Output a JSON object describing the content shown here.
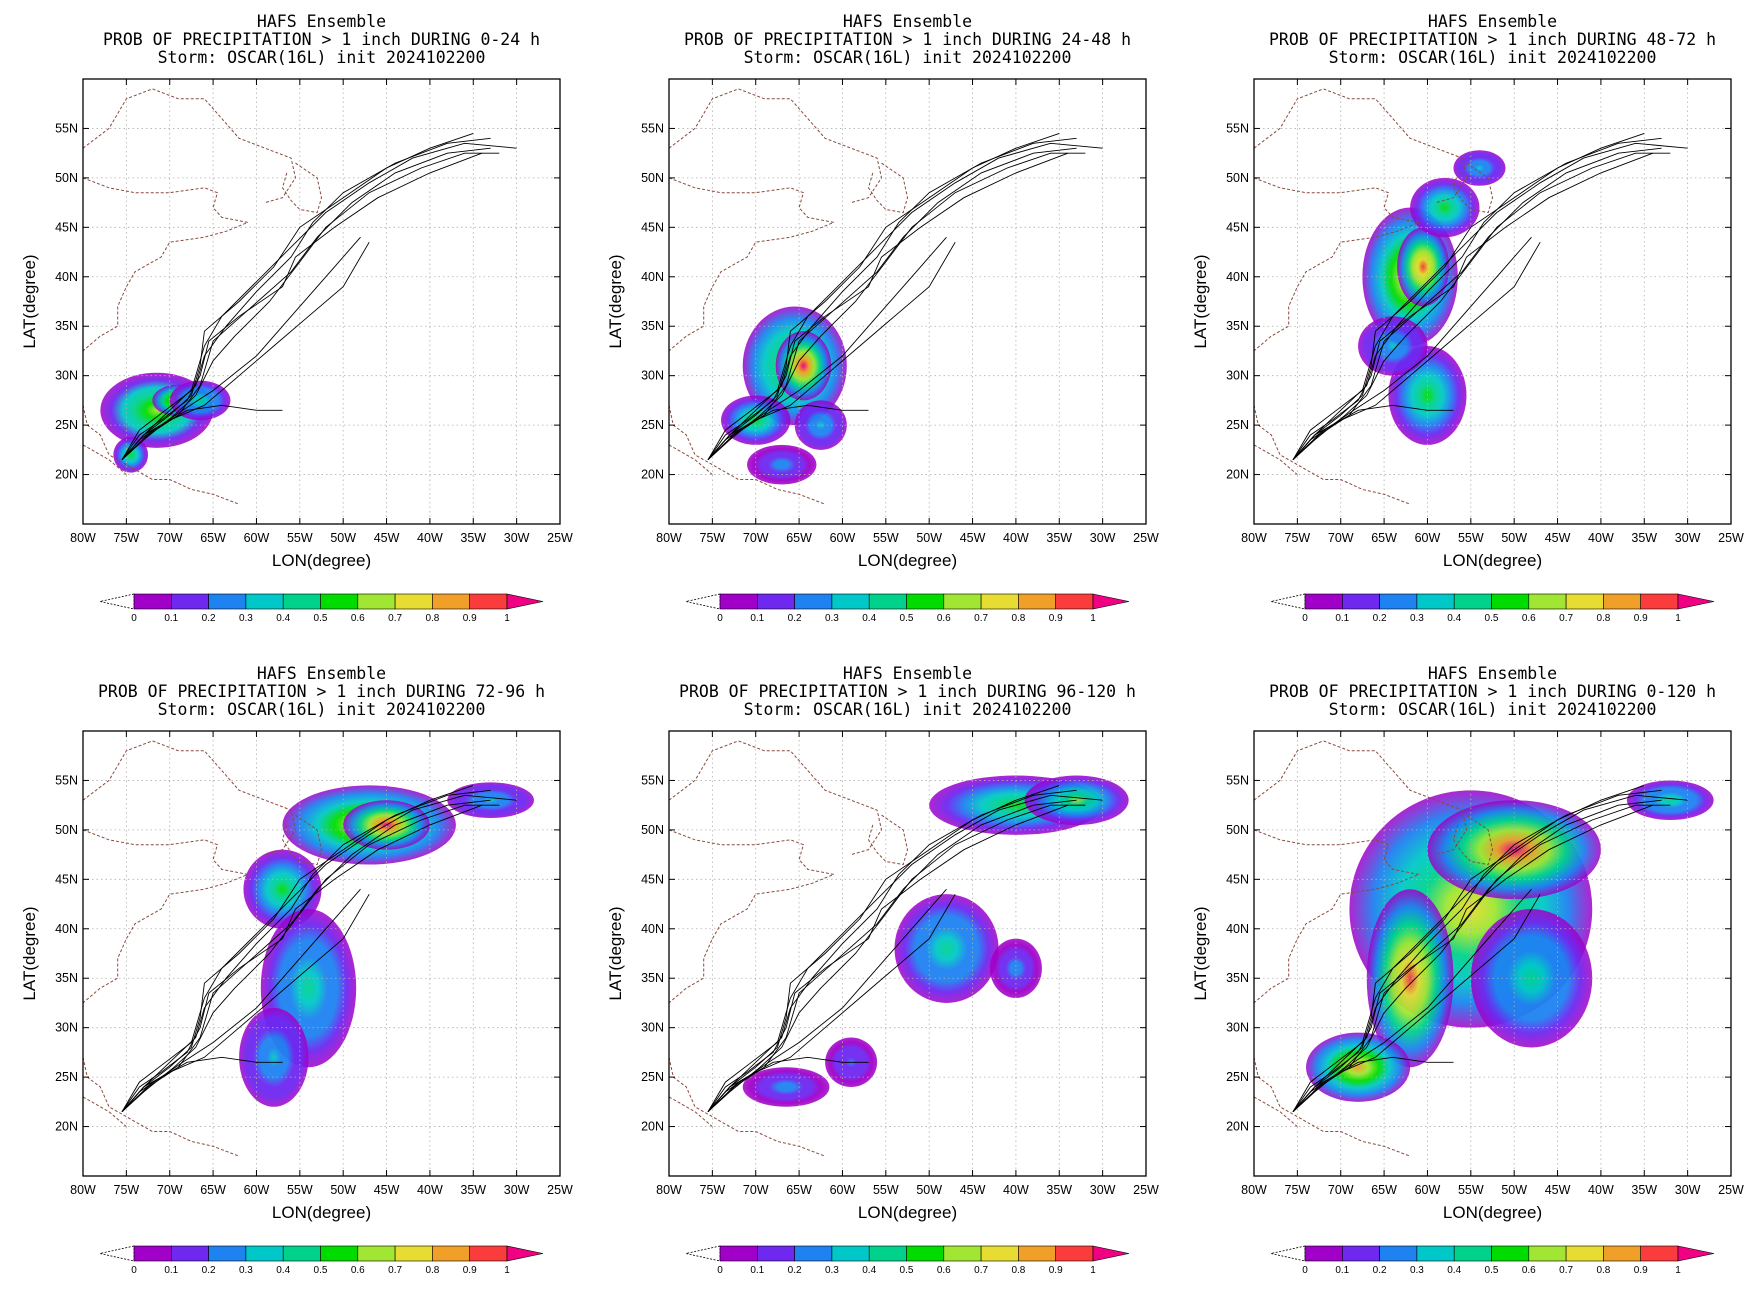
{
  "chart_data": [
    {
      "type": "heatmap",
      "model": "HAFS Ensemble",
      "title": "PROB OF PRECIPITATION > 1 inch DURING  0-24 h",
      "storm": "Storm: OSCAR(16L) init 2024102200",
      "xlabel": "LON(degree)",
      "ylabel": "LAT(degree)",
      "xlim": [
        -80,
        -25
      ],
      "ylim": [
        15,
        60
      ],
      "xticks": [
        "80W",
        "75W",
        "70W",
        "65W",
        "60W",
        "55W",
        "50W",
        "45W",
        "40W",
        "35W",
        "30W",
        "25W"
      ],
      "yticks": [
        "20N",
        "25N",
        "30N",
        "35N",
        "40N",
        "45N",
        "50N",
        "55N"
      ],
      "grid": true,
      "colorbar": {
        "ticks": [
          "0",
          "0.1",
          "0.2",
          "0.3",
          "0.4",
          "0.5",
          "0.6",
          "0.7",
          "0.8",
          "0.9",
          "1"
        ]
      },
      "precip_blobs": [
        {
          "lon": -71.5,
          "lat": 26.5,
          "rx": 6.5,
          "ry": 3.8,
          "peak": 0.6
        },
        {
          "lon": -69.0,
          "lat": 27.5,
          "rx": 3.0,
          "ry": 1.6,
          "peak": 0.85
        },
        {
          "lon": -74.5,
          "lat": 22.0,
          "rx": 2.0,
          "ry": 1.8,
          "peak": 0.45
        },
        {
          "lon": -66.5,
          "lat": 27.5,
          "rx": 3.5,
          "ry": 2.0,
          "peak": 0.35
        }
      ]
    },
    {
      "type": "heatmap",
      "model": "HAFS Ensemble",
      "title": "PROB OF PRECIPITATION > 1 inch DURING 24-48 h",
      "storm": "Storm: OSCAR(16L) init 2024102200",
      "xlabel": "LON(degree)",
      "ylabel": "LAT(degree)",
      "xlim": [
        -80,
        -25
      ],
      "ylim": [
        15,
        60
      ],
      "xticks": [
        "80W",
        "75W",
        "70W",
        "65W",
        "60W",
        "55W",
        "50W",
        "45W",
        "40W",
        "35W",
        "30W",
        "25W"
      ],
      "yticks": [
        "20N",
        "25N",
        "30N",
        "35N",
        "40N",
        "45N",
        "50N",
        "55N"
      ],
      "grid": true,
      "colorbar": {
        "ticks": [
          "0",
          "0.1",
          "0.2",
          "0.3",
          "0.4",
          "0.5",
          "0.6",
          "0.7",
          "0.8",
          "0.9",
          "1"
        ]
      },
      "precip_blobs": [
        {
          "lon": -65.5,
          "lat": 31.0,
          "rx": 6.0,
          "ry": 6.0,
          "peak": 0.7
        },
        {
          "lon": -64.5,
          "lat": 31.0,
          "rx": 3.2,
          "ry": 3.5,
          "peak": 0.95
        },
        {
          "lon": -70.0,
          "lat": 25.5,
          "rx": 4.0,
          "ry": 2.5,
          "peak": 0.45
        },
        {
          "lon": -62.5,
          "lat": 25.0,
          "rx": 3.0,
          "ry": 2.5,
          "peak": 0.3
        },
        {
          "lon": -67.0,
          "lat": 21.0,
          "rx": 4.0,
          "ry": 2.0,
          "peak": 0.2
        }
      ]
    },
    {
      "type": "heatmap",
      "model": "HAFS Ensemble",
      "title": "PROB OF PRECIPITATION > 1 inch DURING 48-72 h",
      "storm": "Storm: OSCAR(16L) init 2024102200",
      "xlabel": "LON(degree)",
      "ylabel": "LAT(degree)",
      "xlim": [
        -80,
        -25
      ],
      "ylim": [
        15,
        60
      ],
      "xticks": [
        "80W",
        "75W",
        "70W",
        "65W",
        "60W",
        "55W",
        "50W",
        "45W",
        "40W",
        "35W",
        "30W",
        "25W"
      ],
      "yticks": [
        "20N",
        "25N",
        "30N",
        "35N",
        "40N",
        "45N",
        "50N",
        "55N"
      ],
      "grid": true,
      "colorbar": {
        "ticks": [
          "0",
          "0.1",
          "0.2",
          "0.3",
          "0.4",
          "0.5",
          "0.6",
          "0.7",
          "0.8",
          "0.9",
          "1"
        ]
      },
      "precip_blobs": [
        {
          "lon": -62.0,
          "lat": 40.0,
          "rx": 5.5,
          "ry": 7.0,
          "peak": 0.75
        },
        {
          "lon": -60.5,
          "lat": 41.0,
          "rx": 3.0,
          "ry": 4.0,
          "peak": 0.9
        },
        {
          "lon": -58.0,
          "lat": 47.0,
          "rx": 4.0,
          "ry": 3.0,
          "peak": 0.5
        },
        {
          "lon": -60.0,
          "lat": 28.0,
          "rx": 4.5,
          "ry": 5.0,
          "peak": 0.45
        },
        {
          "lon": -54.0,
          "lat": 51.0,
          "rx": 3.0,
          "ry": 1.8,
          "peak": 0.25
        },
        {
          "lon": -64.0,
          "lat": 33.0,
          "rx": 4.0,
          "ry": 3.0,
          "peak": 0.3
        }
      ]
    },
    {
      "type": "heatmap",
      "model": "HAFS Ensemble",
      "title": "PROB OF PRECIPITATION > 1 inch DURING 72-96 h",
      "storm": "Storm: OSCAR(16L) init 2024102200",
      "xlabel": "LON(degree)",
      "ylabel": "LAT(degree)",
      "xlim": [
        -80,
        -25
      ],
      "ylim": [
        15,
        60
      ],
      "xticks": [
        "80W",
        "75W",
        "70W",
        "65W",
        "60W",
        "55W",
        "50W",
        "45W",
        "40W",
        "35W",
        "30W",
        "25W"
      ],
      "yticks": [
        "20N",
        "25N",
        "30N",
        "35N",
        "40N",
        "45N",
        "50N",
        "55N"
      ],
      "grid": true,
      "colorbar": {
        "ticks": [
          "0",
          "0.1",
          "0.2",
          "0.3",
          "0.4",
          "0.5",
          "0.6",
          "0.7",
          "0.8",
          "0.9",
          "1"
        ]
      },
      "precip_blobs": [
        {
          "lon": -47.0,
          "lat": 50.5,
          "rx": 10.0,
          "ry": 4.0,
          "peak": 0.75
        },
        {
          "lon": -45.0,
          "lat": 50.5,
          "rx": 5.0,
          "ry": 2.5,
          "peak": 0.95
        },
        {
          "lon": -57.0,
          "lat": 44.0,
          "rx": 4.5,
          "ry": 4.0,
          "peak": 0.5
        },
        {
          "lon": -33.0,
          "lat": 53.0,
          "rx": 5.0,
          "ry": 1.8,
          "peak": 0.3
        },
        {
          "lon": -54.0,
          "lat": 34.0,
          "rx": 5.5,
          "ry": 8.0,
          "peak": 0.35
        },
        {
          "lon": -58.0,
          "lat": 27.0,
          "rx": 4.0,
          "ry": 5.0,
          "peak": 0.25
        }
      ]
    },
    {
      "type": "heatmap",
      "model": "HAFS Ensemble",
      "title": "PROB OF PRECIPITATION > 1 inch DURING 96-120 h",
      "storm": "Storm: OSCAR(16L) init 2024102200",
      "xlabel": "LON(degree)",
      "ylabel": "LAT(degree)",
      "xlim": [
        -80,
        -25
      ],
      "ylim": [
        15,
        60
      ],
      "xticks": [
        "80W",
        "75W",
        "70W",
        "65W",
        "60W",
        "55W",
        "50W",
        "45W",
        "40W",
        "35W",
        "30W",
        "25W"
      ],
      "yticks": [
        "20N",
        "25N",
        "30N",
        "35N",
        "40N",
        "45N",
        "50N",
        "55N"
      ],
      "grid": true,
      "colorbar": {
        "ticks": [
          "0",
          "0.1",
          "0.2",
          "0.3",
          "0.4",
          "0.5",
          "0.6",
          "0.7",
          "0.8",
          "0.9",
          "1"
        ]
      },
      "precip_blobs": [
        {
          "lon": -40.0,
          "lat": 52.5,
          "rx": 10.0,
          "ry": 3.0,
          "peak": 0.5
        },
        {
          "lon": -33.0,
          "lat": 53.0,
          "rx": 6.0,
          "ry": 2.5,
          "peak": 0.55
        },
        {
          "lon": -48.0,
          "lat": 38.0,
          "rx": 6.0,
          "ry": 5.5,
          "peak": 0.35
        },
        {
          "lon": -40.0,
          "lat": 36.0,
          "rx": 3.0,
          "ry": 3.0,
          "peak": 0.2
        },
        {
          "lon": -66.5,
          "lat": 24.0,
          "rx": 5.0,
          "ry": 2.0,
          "peak": 0.2
        },
        {
          "lon": -59.0,
          "lat": 26.5,
          "rx": 3.0,
          "ry": 2.5,
          "peak": 0.15
        }
      ]
    },
    {
      "type": "heatmap",
      "model": "HAFS Ensemble",
      "title": "PROB OF PRECIPITATION > 1 inch DURING 0-120 h",
      "storm": "Storm: OSCAR(16L) init 2024102200",
      "xlabel": "LON(degree)",
      "ylabel": "LAT(degree)",
      "xlim": [
        -80,
        -25
      ],
      "ylim": [
        15,
        60
      ],
      "xticks": [
        "80W",
        "75W",
        "70W",
        "65W",
        "60W",
        "55W",
        "50W",
        "45W",
        "40W",
        "35W",
        "30W",
        "25W"
      ],
      "yticks": [
        "20N",
        "25N",
        "30N",
        "35N",
        "40N",
        "45N",
        "50N",
        "55N"
      ],
      "grid": true,
      "colorbar": {
        "ticks": [
          "0",
          "0.1",
          "0.2",
          "0.3",
          "0.4",
          "0.5",
          "0.6",
          "0.7",
          "0.8",
          "0.9",
          "1"
        ]
      },
      "precip_blobs": [
        {
          "lon": -55.0,
          "lat": 42.0,
          "rx": 14.0,
          "ry": 12.0,
          "peak": 0.7
        },
        {
          "lon": -50.0,
          "lat": 48.0,
          "rx": 10.0,
          "ry": 5.0,
          "peak": 0.95
        },
        {
          "lon": -62.0,
          "lat": 35.0,
          "rx": 5.0,
          "ry": 9.0,
          "peak": 0.9
        },
        {
          "lon": -68.0,
          "lat": 26.0,
          "rx": 6.0,
          "ry": 3.5,
          "peak": 0.75
        },
        {
          "lon": -48.0,
          "lat": 35.0,
          "rx": 7.0,
          "ry": 7.0,
          "peak": 0.4
        },
        {
          "lon": -32.0,
          "lat": 53.0,
          "rx": 5.0,
          "ry": 2.0,
          "peak": 0.35
        }
      ]
    }
  ],
  "colors": {
    "colorbar": [
      "#a000c8",
      "#6e28f0",
      "#1e82f0",
      "#00c8c8",
      "#00d28c",
      "#00dc00",
      "#a0e632",
      "#e6dc32",
      "#f0a028",
      "#fa3c3c",
      "#f00082"
    ],
    "coast": "#8b4a3c",
    "track": "#000000"
  },
  "tracks": [
    [
      [
        -75.5,
        21.5
      ],
      [
        -73,
        24
      ],
      [
        -70,
        26
      ],
      [
        -67.5,
        28
      ],
      [
        -66.5,
        31
      ],
      [
        -66,
        34.5
      ],
      [
        -62,
        37.5
      ],
      [
        -58,
        41
      ],
      [
        -55,
        45
      ],
      [
        -50,
        48
      ],
      [
        -45,
        51
      ],
      [
        -40,
        53
      ],
      [
        -35,
        54.5
      ]
    ],
    [
      [
        -75.5,
        21.5
      ],
      [
        -73.5,
        24.5
      ],
      [
        -70.5,
        26.5
      ],
      [
        -67.5,
        28.5
      ],
      [
        -66,
        33
      ],
      [
        -64,
        36
      ],
      [
        -60,
        39.5
      ],
      [
        -56,
        43
      ],
      [
        -52,
        46.5
      ],
      [
        -47,
        49.5
      ],
      [
        -42,
        52
      ],
      [
        -36,
        53.5
      ],
      [
        -30,
        53
      ]
    ],
    [
      [
        -75.5,
        21.5
      ],
      [
        -73,
        23.5
      ],
      [
        -69.5,
        26
      ],
      [
        -67,
        28
      ],
      [
        -65,
        31.5
      ],
      [
        -62.5,
        34
      ],
      [
        -58.5,
        37.5
      ],
      [
        -55,
        41.5
      ],
      [
        -52,
        45
      ],
      [
        -47,
        48.5
      ],
      [
        -41,
        51
      ],
      [
        -36,
        52.5
      ],
      [
        -32,
        52.5
      ]
    ],
    [
      [
        -75.5,
        21.5
      ],
      [
        -73.5,
        24
      ],
      [
        -71,
        25.5
      ],
      [
        -68,
        27.5
      ],
      [
        -66.5,
        30
      ],
      [
        -65.5,
        33.5
      ],
      [
        -62,
        36
      ],
      [
        -57,
        39
      ],
      [
        -55.5,
        42
      ],
      [
        -51,
        45
      ],
      [
        -46,
        48
      ],
      [
        -40,
        50.5
      ],
      [
        -34,
        52.5
      ]
    ],
    [
      [
        -75.5,
        21.5
      ],
      [
        -73,
        24
      ],
      [
        -70,
        25.5
      ],
      [
        -66,
        27
      ],
      [
        -62,
        30
      ],
      [
        -58,
        33
      ],
      [
        -54,
        36
      ],
      [
        -50,
        39
      ],
      [
        -47,
        43.5
      ]
    ],
    [
      [
        -75.5,
        21.5
      ],
      [
        -72,
        24.5
      ],
      [
        -68,
        26.5
      ],
      [
        -64,
        27
      ],
      [
        -60,
        26.5
      ],
      [
        -57,
        26.5
      ]
    ],
    [
      [
        -75.5,
        21.5
      ],
      [
        -73,
        24
      ],
      [
        -70,
        26.5
      ],
      [
        -67,
        29
      ],
      [
        -66,
        32
      ],
      [
        -63.5,
        35
      ],
      [
        -60,
        38.5
      ],
      [
        -56,
        42
      ],
      [
        -53.5,
        45.5
      ],
      [
        -50,
        48.5
      ],
      [
        -44,
        51.5
      ],
      [
        -38,
        53.5
      ],
      [
        -33,
        54
      ]
    ],
    [
      [
        -75.5,
        21.5
      ],
      [
        -73.5,
        23.5
      ],
      [
        -71,
        25
      ],
      [
        -68.5,
        26.5
      ],
      [
        -65,
        28.5
      ],
      [
        -60,
        32
      ],
      [
        -55,
        37
      ],
      [
        -51,
        41
      ],
      [
        -48,
        44
      ]
    ],
    [
      [
        -75.5,
        21.5
      ],
      [
        -72.5,
        24
      ],
      [
        -69,
        26
      ],
      [
        -66.5,
        29
      ],
      [
        -65,
        33.5
      ],
      [
        -60.5,
        37
      ],
      [
        -56,
        40.5
      ],
      [
        -53,
        44
      ],
      [
        -49,
        47.5
      ],
      [
        -44,
        50.5
      ],
      [
        -38,
        52.5
      ],
      [
        -33,
        53
      ]
    ]
  ],
  "coastlines": [
    [
      [
        -80,
        53
      ],
      [
        -77,
        55
      ],
      [
        -75,
        58
      ],
      [
        -72,
        59
      ],
      [
        -69,
        58
      ],
      [
        -66,
        58
      ],
      [
        -64,
        56
      ],
      [
        -62,
        54
      ],
      [
        -59,
        53
      ],
      [
        -56,
        52
      ],
      [
        -55.5,
        50
      ],
      [
        -57,
        48
      ],
      [
        -59,
        47.5
      ]
    ],
    [
      [
        -55.5,
        51.5
      ],
      [
        -53,
        50
      ],
      [
        -52.5,
        48
      ],
      [
        -53,
        46.5
      ],
      [
        -55,
        46.8
      ],
      [
        -56,
        47.7
      ],
      [
        -57,
        49
      ],
      [
        -56.5,
        50.5
      ]
    ],
    [
      [
        -80,
        50
      ],
      [
        -77,
        49
      ],
      [
        -74,
        48.5
      ],
      [
        -70,
        48.5
      ],
      [
        -66,
        49
      ],
      [
        -64.5,
        48.5
      ],
      [
        -65,
        47
      ],
      [
        -64,
        46
      ],
      [
        -61,
        45.5
      ],
      [
        -63.5,
        44.6
      ],
      [
        -66,
        44
      ],
      [
        -70,
        43.5
      ],
      [
        -71,
        42
      ],
      [
        -74,
        40.5
      ],
      [
        -75,
        39
      ],
      [
        -76,
        37
      ],
      [
        -76,
        35
      ],
      [
        -78,
        34
      ],
      [
        -80,
        32.5
      ]
    ],
    [
      [
        -80,
        27
      ],
      [
        -79.5,
        25
      ],
      [
        -78,
        24
      ],
      [
        -77,
        22
      ],
      [
        -74,
        20.5
      ],
      [
        -72,
        19.5
      ],
      [
        -70,
        19.5
      ],
      [
        -67.5,
        18.5
      ],
      [
        -65,
        18
      ],
      [
        -62,
        17
      ]
    ],
    [
      [
        -80,
        23
      ],
      [
        -77,
        21.5
      ],
      [
        -75,
        20
      ]
    ]
  ]
}
